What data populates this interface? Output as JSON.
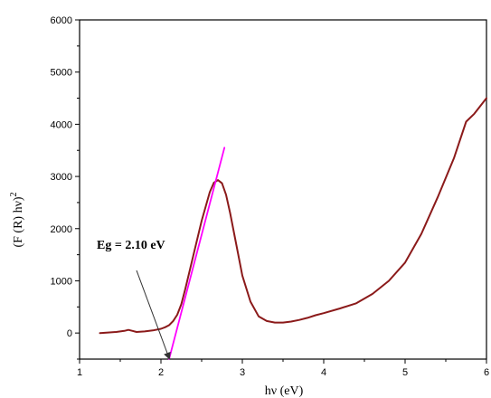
{
  "chart_data": {
    "type": "line",
    "xlabel": "hν (eV)",
    "ylabel": "(F (R) hν)",
    "ylabel_superscript": "2",
    "xlim": [
      1,
      6
    ],
    "ylim": [
      -500,
      6000
    ],
    "xticks": [
      1,
      2,
      3,
      4,
      5,
      6
    ],
    "yticks": [
      0,
      1000,
      2000,
      3000,
      4000,
      5000,
      6000
    ],
    "grid": false,
    "series": [
      {
        "color": "#8b1a1a",
        "x": [
          1.25,
          1.35,
          1.45,
          1.55,
          1.6,
          1.65,
          1.7,
          1.8,
          1.9,
          2.0,
          2.05,
          2.1,
          2.15,
          2.2,
          2.25,
          2.3,
          2.4,
          2.5,
          2.6,
          2.65,
          2.7,
          2.75,
          2.8,
          2.85,
          2.9,
          2.95,
          3.0,
          3.1,
          3.2,
          3.3,
          3.4,
          3.5,
          3.6,
          3.7,
          3.8,
          3.9,
          4.0,
          4.2,
          4.4,
          4.6,
          4.8,
          5.0,
          5.2,
          5.4,
          5.6,
          5.75,
          5.85,
          5.95,
          6.0
        ],
        "y": [
          0,
          10,
          20,
          40,
          60,
          40,
          20,
          30,
          50,
          80,
          110,
          150,
          230,
          350,
          550,
          850,
          1500,
          2150,
          2700,
          2880,
          2930,
          2870,
          2650,
          2300,
          1900,
          1500,
          1100,
          600,
          320,
          230,
          200,
          200,
          220,
          250,
          290,
          340,
          380,
          470,
          570,
          750,
          1000,
          1350,
          1900,
          2600,
          3350,
          4050,
          4200,
          4400,
          4500
        ]
      },
      {
        "color": "#ff00ff",
        "x": [
          2.1,
          2.78
        ],
        "y": [
          -500,
          3550
        ]
      }
    ],
    "annotations": [
      {
        "text": "Eg = 2.10 eV",
        "arrow_from": [
          1.7,
          1200
        ],
        "arrow_to": [
          2.1,
          -480
        ]
      }
    ]
  }
}
